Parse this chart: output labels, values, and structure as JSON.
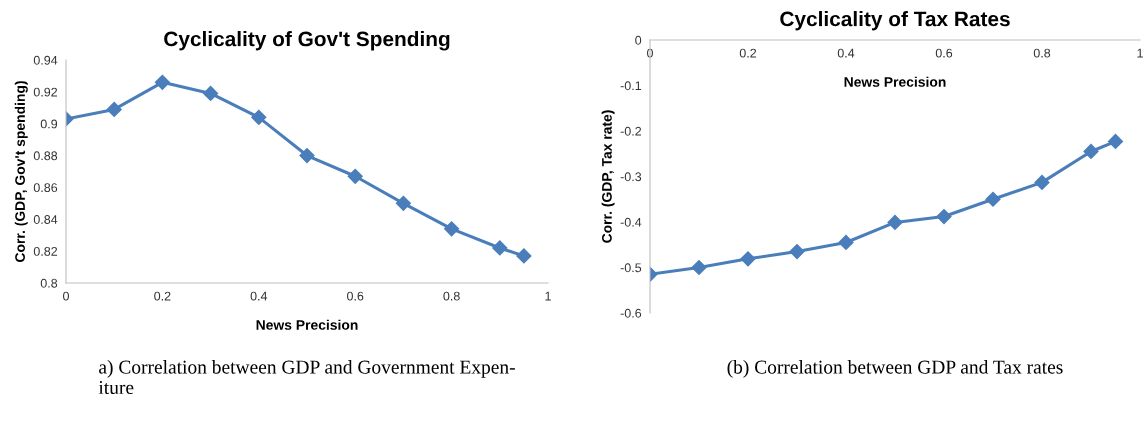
{
  "chart_data": [
    {
      "type": "line",
      "title": "Cyclicality of Gov't Spending",
      "xlabel": "News Precision",
      "ylabel": "Corr. (GDP, Gov't spending)",
      "x": [
        0,
        0.1,
        0.2,
        0.3,
        0.4,
        0.5,
        0.6,
        0.7,
        0.8,
        0.9,
        0.95
      ],
      "series": [
        {
          "color": "#4a7ebb",
          "values": [
            0.903,
            0.909,
            0.926,
            0.919,
            0.904,
            0.88,
            0.867,
            0.85,
            0.834,
            0.822,
            0.817
          ]
        }
      ],
      "xlim": [
        0,
        1
      ],
      "xticks": [
        0,
        0.2,
        0.4,
        0.6,
        0.8,
        1
      ],
      "ylim": [
        0.8,
        0.94
      ],
      "yticks": [
        0.8,
        0.82,
        0.84,
        0.86,
        0.88,
        0.9,
        0.92,
        0.94
      ],
      "marker": "diamond",
      "line_style": "solid",
      "grid": false,
      "legend": false,
      "annotations": [
        "a) Correlation between GDP and Government Expen-\niture"
      ]
    },
    {
      "type": "line",
      "title": "Cyclicality of Tax Rates",
      "xlabel": "News Precision",
      "ylabel": "Corr. (GDP, Tax rate)",
      "x": [
        0,
        0.1,
        0.2,
        0.3,
        0.4,
        0.5,
        0.6,
        0.7,
        0.8,
        0.9,
        0.95
      ],
      "series": [
        {
          "color": "#4a7ebb",
          "values": [
            -0.515,
            -0.5,
            -0.481,
            -0.465,
            -0.445,
            -0.401,
            -0.388,
            -0.35,
            -0.313,
            -0.245,
            -0.223
          ]
        }
      ],
      "xlim": [
        0,
        1
      ],
      "xticks": [
        0,
        0.2,
        0.4,
        0.6,
        0.8,
        1
      ],
      "ylim": [
        -0.6,
        0
      ],
      "yticks": [
        -0.6,
        -0.5,
        -0.4,
        -0.3,
        -0.2,
        -0.1,
        0
      ],
      "marker": "diamond",
      "line_style": "solid",
      "grid": false,
      "legend": false,
      "annotations": [
        "(b) Correlation between GDP and Tax rates"
      ]
    }
  ]
}
